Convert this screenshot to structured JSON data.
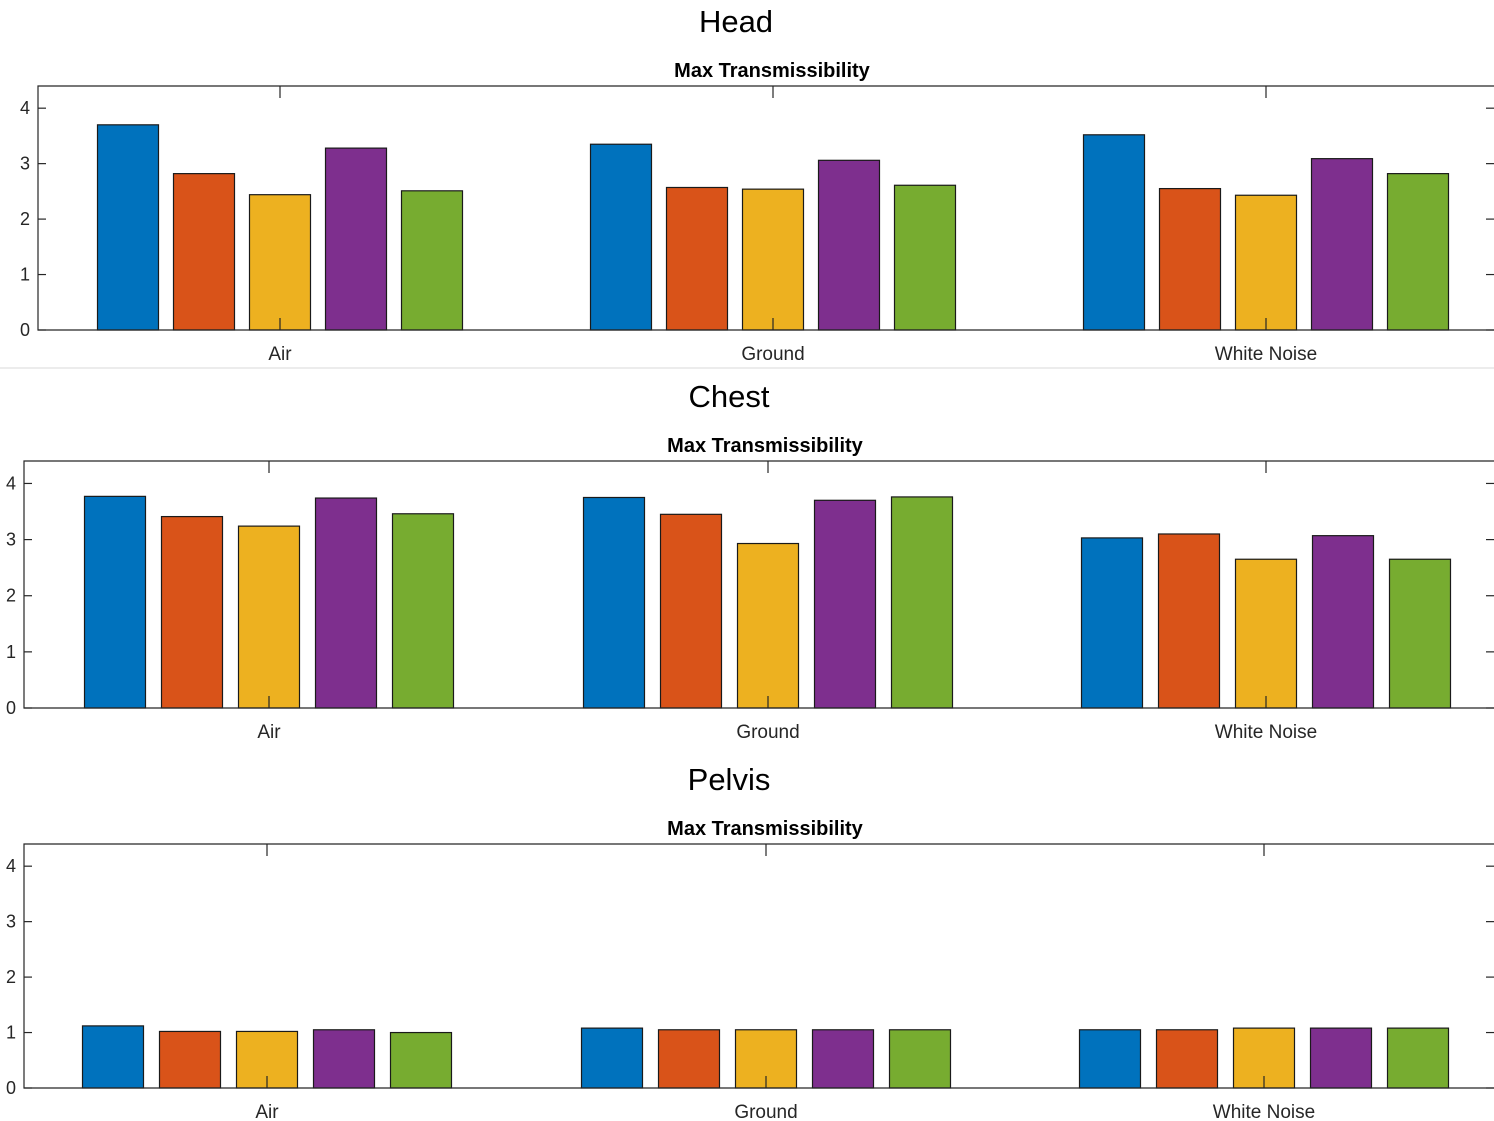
{
  "chart_data": [
    {
      "type": "bar",
      "panel_title": "Head",
      "title": "Max Transmissibility",
      "categories": [
        "Air",
        "Ground",
        "White Noise"
      ],
      "ylim": [
        0,
        4.4
      ],
      "yticks": [
        "0",
        "1",
        "2",
        "3",
        "4"
      ],
      "colors": [
        "#0072BD",
        "#D95319",
        "#EDB120",
        "#7E2F8E",
        "#77AC30"
      ],
      "grid": false,
      "series": [
        {
          "values": [
            3.7,
            3.35,
            3.52
          ]
        },
        {
          "values": [
            2.82,
            2.57,
            2.55
          ]
        },
        {
          "values": [
            2.44,
            2.54,
            2.43
          ]
        },
        {
          "values": [
            3.28,
            3.06,
            3.09
          ]
        },
        {
          "values": [
            2.51,
            2.61,
            2.82
          ]
        }
      ]
    },
    {
      "type": "bar",
      "panel_title": "Chest",
      "title": "Max Transmissibility",
      "categories": [
        "Air",
        "Ground",
        "White Noise"
      ],
      "ylim": [
        0,
        4.4
      ],
      "yticks": [
        "0",
        "1",
        "2",
        "3",
        "4"
      ],
      "colors": [
        "#0072BD",
        "#D95319",
        "#EDB120",
        "#7E2F8E",
        "#77AC30"
      ],
      "grid": false,
      "series": [
        {
          "values": [
            3.77,
            3.75,
            3.03
          ]
        },
        {
          "values": [
            3.41,
            3.45,
            3.1
          ]
        },
        {
          "values": [
            3.24,
            2.93,
            2.65
          ]
        },
        {
          "values": [
            3.74,
            3.7,
            3.07
          ]
        },
        {
          "values": [
            3.46,
            3.76,
            2.65
          ]
        }
      ]
    },
    {
      "type": "bar",
      "panel_title": "Pelvis",
      "title": "Max Transmissibility",
      "categories": [
        "Air",
        "Ground",
        "White Noise"
      ],
      "ylim": [
        0,
        4.4
      ],
      "yticks": [
        "0",
        "1",
        "2",
        "3",
        "4"
      ],
      "colors": [
        "#0072BD",
        "#D95319",
        "#EDB120",
        "#7E2F8E",
        "#77AC30"
      ],
      "grid": false,
      "series": [
        {
          "values": [
            1.12,
            1.08,
            1.05
          ]
        },
        {
          "values": [
            1.02,
            1.05,
            1.05
          ]
        },
        {
          "values": [
            1.02,
            1.05,
            1.08
          ]
        },
        {
          "values": [
            1.05,
            1.05,
            1.08
          ]
        },
        {
          "values": [
            1.0,
            1.05,
            1.08
          ]
        }
      ]
    }
  ]
}
